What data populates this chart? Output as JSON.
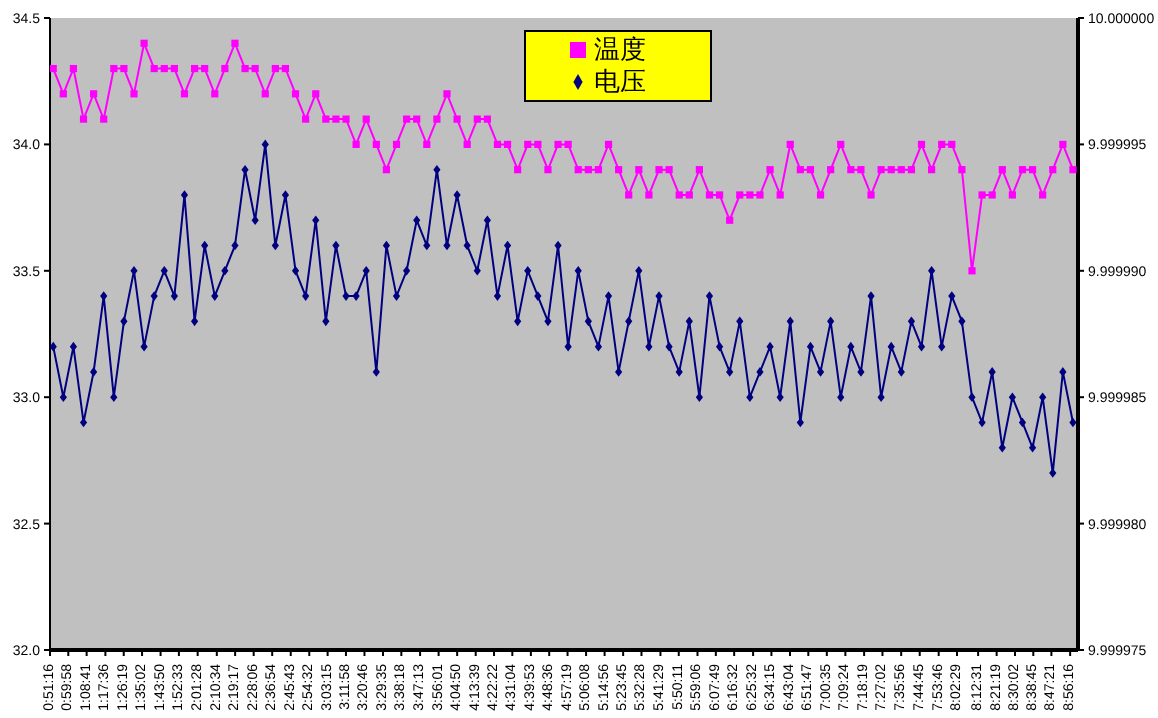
{
  "chart_data": {
    "type": "line",
    "x": [
      0.88,
      0.96,
      1.04,
      1.12,
      1.2,
      1.28,
      1.36,
      1.44,
      1.52,
      1.6,
      1.68,
      1.76,
      1.84,
      1.92,
      2.0,
      2.08,
      2.16,
      2.24,
      2.32,
      2.4,
      2.48,
      2.56,
      2.64,
      2.72,
      2.8,
      2.88,
      2.96,
      3.04,
      3.12,
      3.2,
      3.28,
      3.36,
      3.44,
      3.52,
      3.6,
      3.68,
      3.76,
      3.84,
      3.92,
      4.0,
      4.08,
      4.16,
      4.24,
      4.32,
      4.4,
      4.48,
      4.56,
      4.64,
      4.72,
      4.8,
      4.88,
      4.96,
      5.04,
      5.12,
      5.2,
      5.28,
      5.36,
      5.44,
      5.52,
      5.6,
      5.68,
      5.76,
      5.84,
      5.92,
      6.0,
      6.08,
      6.16,
      6.24,
      6.32,
      6.4,
      6.48,
      6.56,
      6.64,
      6.72,
      6.8,
      6.88,
      6.96,
      7.04,
      7.12,
      7.2,
      7.28,
      7.36,
      7.44,
      7.52,
      7.6,
      7.68,
      7.76,
      7.84,
      7.92,
      8.0,
      8.08,
      8.16,
      8.24,
      8.32,
      8.4,
      8.48,
      8.56,
      8.64,
      8.72,
      8.8,
      8.88,
      8.96
    ],
    "series": [
      {
        "name": "温度",
        "color": "#ff00ff",
        "marker": "square",
        "values": [
          34.3,
          34.2,
          34.3,
          34.1,
          34.2,
          34.1,
          34.3,
          34.3,
          34.2,
          34.4,
          34.3,
          34.3,
          34.3,
          34.2,
          34.3,
          34.3,
          34.2,
          34.3,
          34.4,
          34.3,
          34.3,
          34.2,
          34.3,
          34.3,
          34.2,
          34.1,
          34.2,
          34.1,
          34.1,
          34.1,
          34.0,
          34.1,
          34.0,
          33.9,
          34.0,
          34.1,
          34.1,
          34.0,
          34.1,
          34.2,
          34.1,
          34.0,
          34.1,
          34.1,
          34.0,
          34.0,
          33.9,
          34.0,
          34.0,
          33.9,
          34.0,
          34.0,
          33.9,
          33.9,
          33.9,
          34.0,
          33.9,
          33.8,
          33.9,
          33.8,
          33.9,
          33.9,
          33.8,
          33.8,
          33.9,
          33.8,
          33.8,
          33.7,
          33.8,
          33.8,
          33.8,
          33.9,
          33.8,
          34.0,
          33.9,
          33.9,
          33.8,
          33.9,
          34.0,
          33.9,
          33.9,
          33.8,
          33.9,
          33.9,
          33.9,
          33.9,
          34.0,
          33.9,
          34.0,
          34.0,
          33.9,
          33.5,
          33.8,
          33.8,
          33.9,
          33.8,
          33.9,
          33.9,
          33.8,
          33.9,
          34.0,
          33.9
        ]
      },
      {
        "name": "电压",
        "color": "#000080",
        "marker": "diamond",
        "axis": "y2",
        "values": [
          9.999987,
          9.999985,
          9.999987,
          9.999984,
          9.999986,
          9.999989,
          9.999985,
          9.999988,
          9.99999,
          9.999987,
          9.999989,
          9.99999,
          9.999989,
          9.999993,
          9.999988,
          9.999991,
          9.999989,
          9.99999,
          9.999991,
          9.999994,
          9.999992,
          9.999995,
          9.999991,
          9.999993,
          9.99999,
          9.999989,
          9.999992,
          9.999988,
          9.999991,
          9.999989,
          9.999989,
          9.99999,
          9.999986,
          9.999991,
          9.999989,
          9.99999,
          9.999992,
          9.999991,
          9.999994,
          9.999991,
          9.999993,
          9.999991,
          9.99999,
          9.999992,
          9.999989,
          9.999991,
          9.999988,
          9.99999,
          9.999989,
          9.999988,
          9.999991,
          9.999987,
          9.99999,
          9.999988,
          9.999987,
          9.999989,
          9.999986,
          9.999988,
          9.99999,
          9.999987,
          9.999989,
          9.999987,
          9.999986,
          9.999988,
          9.999985,
          9.999989,
          9.999987,
          9.999986,
          9.999988,
          9.999985,
          9.999986,
          9.999987,
          9.999985,
          9.999988,
          9.999984,
          9.999987,
          9.999986,
          9.999988,
          9.999985,
          9.999987,
          9.999986,
          9.999989,
          9.999985,
          9.999987,
          9.999986,
          9.999988,
          9.999987,
          9.99999,
          9.999987,
          9.999989,
          9.999988,
          9.999985,
          9.999984,
          9.999986,
          9.999983,
          9.999985,
          9.999984,
          9.999983,
          9.999985,
          9.999982,
          9.999986,
          9.999984
        ]
      }
    ],
    "xlim": [
      0.8544,
      9.0
    ],
    "xticks": [
      {
        "value": 0.8544,
        "label": "0:51:16"
      },
      {
        "value": 0.9994,
        "label": "0:59:58"
      },
      {
        "value": 1.1447,
        "label": "1:08:41"
      },
      {
        "value": 1.2933,
        "label": "1:17:36"
      },
      {
        "value": 1.4386,
        "label": "1:26:19"
      },
      {
        "value": 1.5839,
        "label": "1:35:02"
      },
      {
        "value": 1.7306,
        "label": "1:43:50"
      },
      {
        "value": 1.8758,
        "label": "1:52:33"
      },
      {
        "value": 2.0244,
        "label": "2:01:28"
      },
      {
        "value": 2.1761,
        "label": "2:10:34"
      },
      {
        "value": 2.3214,
        "label": "2:19:17"
      },
      {
        "value": 2.4683,
        "label": "2:28:06"
      },
      {
        "value": 2.615,
        "label": "2:36:54"
      },
      {
        "value": 2.7619,
        "label": "2:45:43"
      },
      {
        "value": 2.9089,
        "label": "2:54:32"
      },
      {
        "value": 3.0542,
        "label": "3:03:15"
      },
      {
        "value": 3.1994,
        "label": "3:11:58"
      },
      {
        "value": 3.3461,
        "label": "3:20:46"
      },
      {
        "value": 3.4931,
        "label": "3:29:35"
      },
      {
        "value": 3.6383,
        "label": "3:38:18"
      },
      {
        "value": 3.7869,
        "label": "3:47:13"
      },
      {
        "value": 3.9336,
        "label": "3:56:01"
      },
      {
        "value": 4.0806,
        "label": "4:04:50"
      },
      {
        "value": 4.2275,
        "label": "4:13:39"
      },
      {
        "value": 4.3728,
        "label": "4:22:22"
      },
      {
        "value": 4.5178,
        "label": "4:31:04"
      },
      {
        "value": 4.6647,
        "label": "4:39:53"
      },
      {
        "value": 4.81,
        "label": "4:48:36"
      },
      {
        "value": 4.9553,
        "label": "4:57:19"
      },
      {
        "value": 5.1022,
        "label": "5:06:08"
      },
      {
        "value": 5.2489,
        "label": "5:14:56"
      },
      {
        "value": 5.3958,
        "label": "5:23:45"
      },
      {
        "value": 5.5411,
        "label": "5:32:28"
      },
      {
        "value": 5.6914,
        "label": "5:41:29"
      },
      {
        "value": 5.8364,
        "label": "5:50:11"
      },
      {
        "value": 5.985,
        "label": "5:59:06"
      },
      {
        "value": 6.1303,
        "label": "6:07:49"
      },
      {
        "value": 6.2756,
        "label": "6:16:32"
      },
      {
        "value": 6.4256,
        "label": "6:25:32"
      },
      {
        "value": 6.5708,
        "label": "6:34:15"
      },
      {
        "value": 6.7178,
        "label": "6:43:04"
      },
      {
        "value": 6.8631,
        "label": "6:51:47"
      },
      {
        "value": 7.0097,
        "label": "7:00:35"
      },
      {
        "value": 7.1567,
        "label": "7:09:24"
      },
      {
        "value": 7.3053,
        "label": "7:18:19"
      },
      {
        "value": 7.4506,
        "label": "7:27:02"
      },
      {
        "value": 7.5989,
        "label": "7:35:56"
      },
      {
        "value": 7.7458,
        "label": "7:44:45"
      },
      {
        "value": 7.8961,
        "label": "7:53:46"
      },
      {
        "value": 8.0414,
        "label": "8:02:29"
      },
      {
        "value": 8.2086,
        "label": "8:12:31"
      },
      {
        "value": 8.3553,
        "label": "8:21:19"
      },
      {
        "value": 8.5006,
        "label": "8:30:02"
      },
      {
        "value": 8.6458,
        "label": "8:38:45"
      },
      {
        "value": 8.7892,
        "label": "8:47:21"
      },
      {
        "value": 8.9378,
        "label": "8:56:16"
      }
    ],
    "ylim": [
      32,
      34.5
    ],
    "yticks": [
      {
        "value": 32,
        "label": "32.0"
      },
      {
        "value": 32.5,
        "label": "32.5"
      },
      {
        "value": 33,
        "label": "33.0"
      },
      {
        "value": 33.5,
        "label": "33.5"
      },
      {
        "value": 34,
        "label": "34.0"
      },
      {
        "value": 34.5,
        "label": "34.5"
      }
    ],
    "y2lim": [
      9.999975,
      10.0
    ],
    "y2ticks": [
      {
        "value": 9.999975,
        "label": "9.999975"
      },
      {
        "value": 9.99998,
        "label": "9.999980"
      },
      {
        "value": 9.999985,
        "label": "9.999985"
      },
      {
        "value": 9.99999,
        "label": "9.999990"
      },
      {
        "value": 9.999995,
        "label": "9.999995"
      },
      {
        "value": 10.0,
        "label": "10.000000"
      }
    ],
    "grid": false,
    "legend": "top",
    "line_style": "solid"
  }
}
